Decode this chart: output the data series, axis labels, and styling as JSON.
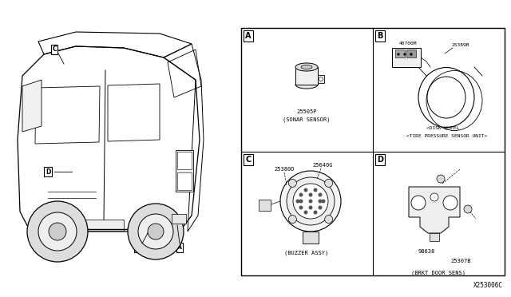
{
  "bg_color": "#ffffff",
  "fig_width": 6.4,
  "fig_height": 3.72,
  "diagram_code": "X253006C",
  "line_color": "#000000",
  "text_color": "#000000",
  "font_size_label": 6.0,
  "font_size_part": 5.0,
  "font_size_caption": 5.0,
  "panels": {
    "A": {
      "label": "A",
      "part_num": "25505P",
      "caption": "(SONAR SENSOR)"
    },
    "B": {
      "label": "B",
      "part_nums": [
        "40700M",
        "25389B"
      ],
      "caption_line1": "<DISK WHEEL",
      "caption_line2": "<TIRE PRESSURE SENSOR UNIT>"
    },
    "C": {
      "label": "C",
      "part_nums": [
        "25380D",
        "25640G"
      ],
      "caption": "(BUZZER ASSY)"
    },
    "D": {
      "label": "D",
      "part_nums": [
        "98638",
        "25307B"
      ],
      "caption": "(BRKT DOOR SENS)"
    }
  }
}
